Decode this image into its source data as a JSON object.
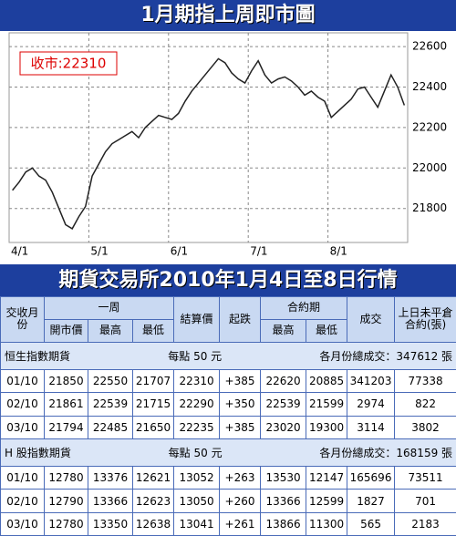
{
  "chart_data": {
    "type": "line",
    "title": "1月期指上周即市圖",
    "annotation": "收市:22310",
    "color": "#222222",
    "categories": [
      "4/1",
      null,
      null,
      null,
      null,
      null,
      null,
      null,
      null,
      null,
      null,
      null,
      "5/1",
      null,
      null,
      null,
      null,
      null,
      null,
      null,
      null,
      null,
      null,
      null,
      "6/1",
      null,
      null,
      null,
      null,
      null,
      null,
      null,
      null,
      null,
      null,
      null,
      "7/1",
      null,
      null,
      null,
      null,
      null,
      null,
      null,
      null,
      null,
      null,
      null,
      "8/1",
      null,
      null,
      null,
      null,
      null,
      null,
      null,
      null,
      null,
      null,
      null
    ],
    "values": [
      21890,
      21930,
      21980,
      22000,
      21960,
      21940,
      21880,
      21800,
      21720,
      21700,
      21760,
      21810,
      21960,
      22020,
      22080,
      22120,
      22140,
      22160,
      22180,
      22150,
      22200,
      22230,
      22260,
      22250,
      22240,
      22270,
      22330,
      22380,
      22420,
      22460,
      22500,
      22540,
      22520,
      22470,
      22440,
      22420,
      22480,
      22530,
      22460,
      22420,
      22440,
      22450,
      22430,
      22400,
      22360,
      22380,
      22350,
      22330,
      22250,
      22280,
      22310,
      22340,
      22390,
      22400,
      22350,
      22300,
      22380,
      22460,
      22400,
      22310
    ],
    "ylim": [
      21650,
      22650
    ],
    "yticks": [
      21800,
      22000,
      22200,
      22400,
      22600
    ],
    "grid": true
  },
  "table": {
    "title": "期貨交易所2010年1月4日至8日行情",
    "header": {
      "month": "交收月份",
      "week": "一周",
      "open": "開市價",
      "high": "最高",
      "low": "最低",
      "settle": "結算價",
      "change": "起跌",
      "contract": "合約期",
      "c_high": "最高",
      "c_low": "最低",
      "volume": "成交",
      "oi": "上日未平倉合約(張)"
    },
    "sections": [
      {
        "name": "恒生指數期貨",
        "unit": "每點 50 元",
        "total": "各月份總成交：347612 張",
        "rows": [
          [
            "01/10",
            "21850",
            "22550",
            "21707",
            "22310",
            "+385",
            "22620",
            "20885",
            "341203",
            "77338"
          ],
          [
            "02/10",
            "21861",
            "22539",
            "21715",
            "22290",
            "+350",
            "22539",
            "21599",
            "2974",
            "822"
          ],
          [
            "03/10",
            "21794",
            "22485",
            "21650",
            "22235",
            "+385",
            "23020",
            "19300",
            "3114",
            "3802"
          ]
        ]
      },
      {
        "name": "H 股指數期貨",
        "unit": "每點 50 元",
        "total": "各月份總成交：168159 張",
        "rows": [
          [
            "01/10",
            "12780",
            "13376",
            "12621",
            "13052",
            "+263",
            "13530",
            "12147",
            "165696",
            "73511"
          ],
          [
            "02/10",
            "12790",
            "13366",
            "12623",
            "13050",
            "+260",
            "13366",
            "12599",
            "1827",
            "701"
          ],
          [
            "03/10",
            "12780",
            "13350",
            "12638",
            "13041",
            "+261",
            "13866",
            "11300",
            "565",
            "2183"
          ]
        ]
      }
    ]
  }
}
